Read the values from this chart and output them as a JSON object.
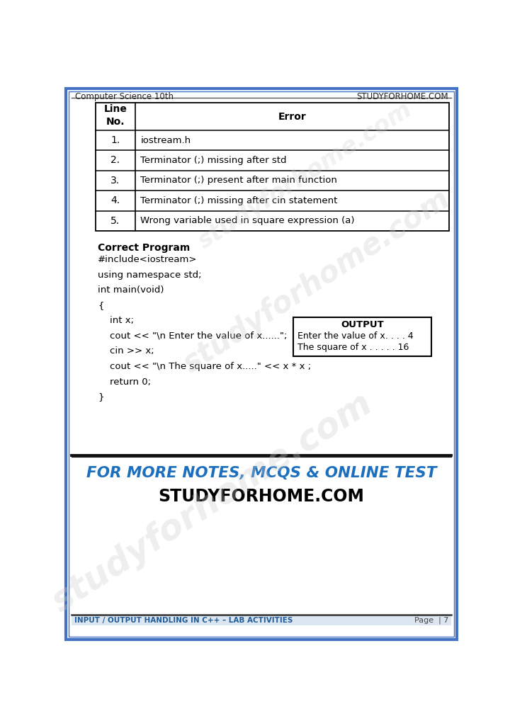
{
  "page_bg": "#ffffff",
  "border_color": "#4472C4",
  "header_left": "Computer Science 10th",
  "header_right": "STUDYFORHOME.COM",
  "table_headers_col1": "Line\nNo.",
  "table_headers_col2": "Error",
  "table_rows": [
    [
      "1.",
      "iostream.h"
    ],
    [
      "2.",
      "Terminator (;) missing after std"
    ],
    [
      "3.",
      "Terminator (;) present after main function"
    ],
    [
      "4.",
      "Terminator (;) missing after cin statement"
    ],
    [
      "5.",
      "Wrong variable used in square expression (a)"
    ]
  ],
  "correct_program_label": "Correct Program",
  "code_lines": [
    "#include<iostream>",
    "using namespace std;",
    "int main(void)",
    "{",
    "    int x;",
    "    cout << \"\\n Enter the value of x......\";",
    "    cin >> x;",
    "    cout << \"\\n The square of x.....\" << x * x ;",
    "    return 0;",
    "}"
  ],
  "output_box_title": "OUTPUT",
  "output_box_lines": [
    "Enter the value of x. . . . 4",
    "The square of x . . . . . 16"
  ],
  "promo_line1": "FOR MORE NOTES, MCQS & ONLINE TEST",
  "promo_line2": "STUDYFORHOME.COM",
  "footer_left": "INPUT / OUTPUT HANDLING IN C++ – LAB ACTIVITIES",
  "footer_right": "Page  | 7",
  "watermark_text": "studyforhome.com",
  "blue_color": "#1F5C99",
  "promo_blue": "#1B6FBE",
  "table_border": "#000000",
  "footer_bg": "#dce6f1",
  "header_line_color": "#555555",
  "div_line_color": "#111111"
}
